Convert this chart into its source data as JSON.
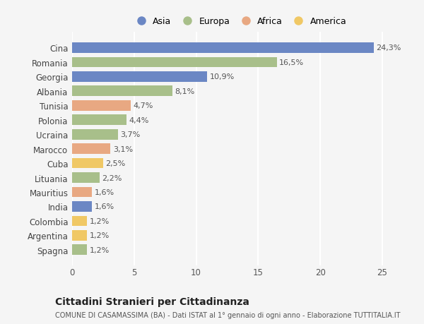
{
  "countries": [
    "Cina",
    "Romania",
    "Georgia",
    "Albania",
    "Tunisia",
    "Polonia",
    "Ucraina",
    "Marocco",
    "Cuba",
    "Lituania",
    "Mauritius",
    "India",
    "Colombia",
    "Argentina",
    "Spagna"
  ],
  "values": [
    24.3,
    16.5,
    10.9,
    8.1,
    4.7,
    4.4,
    3.7,
    3.1,
    2.5,
    2.2,
    1.6,
    1.6,
    1.2,
    1.2,
    1.2
  ],
  "labels": [
    "24,3%",
    "16,5%",
    "10,9%",
    "8,1%",
    "4,7%",
    "4,4%",
    "3,7%",
    "3,1%",
    "2,5%",
    "2,2%",
    "1,6%",
    "1,6%",
    "1,2%",
    "1,2%",
    "1,2%"
  ],
  "colors": [
    "#6b87c4",
    "#a8bf8a",
    "#6b87c4",
    "#a8bf8a",
    "#e8a882",
    "#a8bf8a",
    "#a8bf8a",
    "#e8a882",
    "#f0c865",
    "#a8bf8a",
    "#e8a882",
    "#6b87c4",
    "#f0c865",
    "#f0c865",
    "#a8bf8a"
  ],
  "legend_labels": [
    "Asia",
    "Europa",
    "Africa",
    "America"
  ],
  "legend_colors": [
    "#6b87c4",
    "#a8bf8a",
    "#e8a882",
    "#f0c865"
  ],
  "title": "Cittadini Stranieri per Cittadinanza",
  "subtitle": "COMUNE DI CASAMASSIMA (BA) - Dati ISTAT al 1° gennaio di ogni anno - Elaborazione TUTTITALIA.IT",
  "xlim": [
    0,
    27
  ],
  "xticks": [
    0,
    5,
    10,
    15,
    20,
    25
  ],
  "background_color": "#f5f5f5",
  "grid_color": "#ffffff",
  "bar_height": 0.72,
  "label_fontsize": 8,
  "ytick_fontsize": 8.5,
  "xtick_fontsize": 8.5,
  "title_fontsize": 10,
  "subtitle_fontsize": 7
}
